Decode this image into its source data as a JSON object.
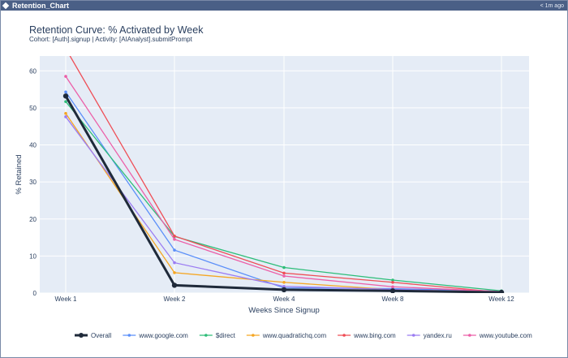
{
  "window": {
    "title": "Retention_Chart",
    "updated": "< 1m ago"
  },
  "chart_data": {
    "type": "line",
    "title": "Retention Curve: % Activated by Week",
    "subtitle": "Cohort: [Auth].signup | Activity: [AIAnalyst].submitPrompt",
    "xlabel": "Weeks Since Signup",
    "ylabel": "% Retained",
    "categories": [
      "Week 1",
      "Week 2",
      "Week 4",
      "Week 8",
      "Week 12"
    ],
    "ylim": [
      0,
      64
    ],
    "yticks": [
      0,
      10,
      20,
      30,
      40,
      50,
      60
    ],
    "grid": true,
    "legend_position": "bottom",
    "series": [
      {
        "name": "Overall",
        "color": "#1f2a3a",
        "values": [
          53.2,
          2.1,
          0.9,
          0.6,
          0.2
        ],
        "bold": true
      },
      {
        "name": "www.google.com",
        "color": "#5b8ff9",
        "values": [
          54.3,
          11.6,
          1.4,
          1.2,
          0.5
        ]
      },
      {
        "name": "$direct",
        "color": "#2dbd78",
        "values": [
          51.7,
          15.3,
          6.9,
          3.5,
          0.6
        ]
      },
      {
        "name": "www.quadratichq.com",
        "color": "#f5a623",
        "values": [
          48.5,
          5.5,
          2.9,
          0.9,
          0.3
        ]
      },
      {
        "name": "www.bing.com",
        "color": "#ef4d55",
        "values": [
          66.0,
          15.4,
          5.4,
          2.9,
          0.2
        ]
      },
      {
        "name": "yandex.ru",
        "color": "#9b7cf2",
        "values": [
          47.6,
          8.2,
          1.8,
          1.0,
          0.2
        ]
      },
      {
        "name": "www.youtube.com",
        "color": "#ec5fa8",
        "values": [
          58.5,
          14.5,
          4.6,
          1.7,
          0.4
        ]
      }
    ]
  }
}
